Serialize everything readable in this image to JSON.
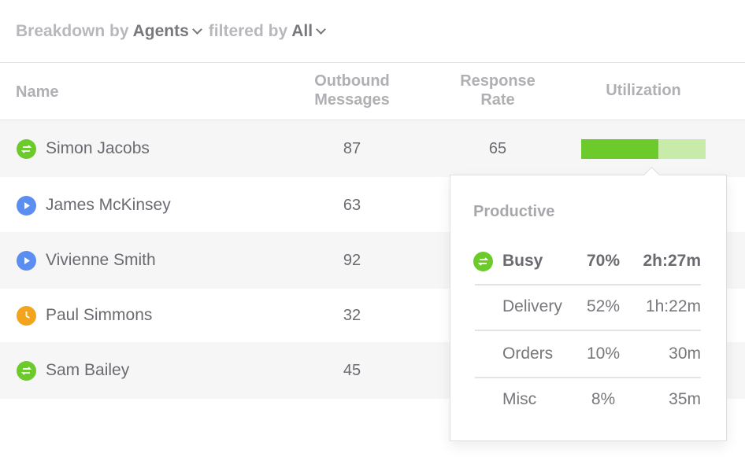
{
  "header": {
    "breakdown_label": "Breakdown by",
    "breakdown_value": "Agents",
    "filter_label": "filtered by",
    "filter_value": "All"
  },
  "table": {
    "columns": [
      "Name",
      "Outbound Messages",
      "Response Rate",
      "Utilization"
    ],
    "rows": [
      {
        "name": "Simon Jacobs",
        "outbound": 87,
        "response_rate": 65,
        "utilization": 62
      },
      {
        "name": "James McKinsey",
        "outbound": 63
      },
      {
        "name": "Vivienne Smith",
        "outbound": 92
      },
      {
        "name": "Paul Simmons",
        "outbound": 32
      },
      {
        "name": "Sam Bailey",
        "outbound": 45
      }
    ]
  },
  "tooltip": {
    "title": "Productive",
    "rows": [
      [
        "Busy",
        "70%",
        "2h:27m"
      ],
      [
        "Delivery",
        "52%",
        "1h:22m"
      ],
      [
        "Orders",
        "10%",
        "30m"
      ],
      [
        "Misc",
        "8%",
        "35m"
      ]
    ]
  }
}
